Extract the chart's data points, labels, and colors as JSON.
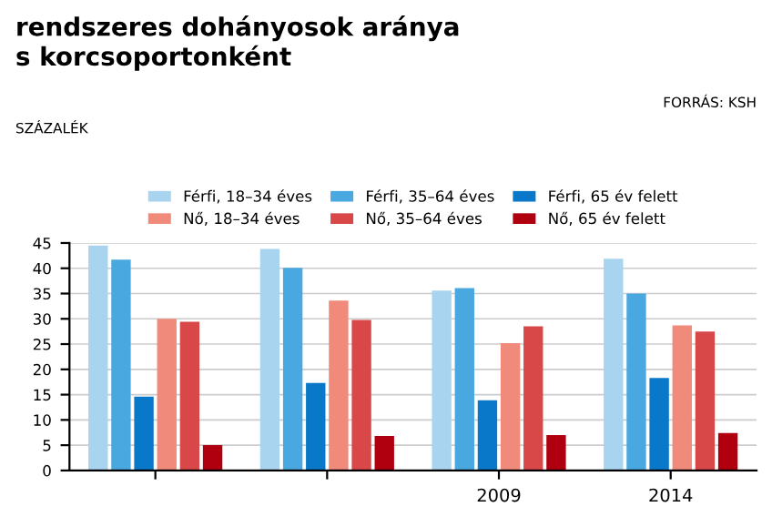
{
  "chart_data": {
    "type": "bar",
    "title": "rendszeres dohányosok aránya\ns korcsoportonként",
    "annotations": [
      "FORRÁS: KSH",
      "SZÁZALÉK"
    ],
    "categories": [
      null,
      null,
      "2009",
      "2014"
    ],
    "series": [
      {
        "name": "Férfi, 18–34 éves",
        "color": "#a8d4f0",
        "values": [
          44.5,
          43.8,
          35.6,
          41.9
        ]
      },
      {
        "name": "Férfi, 35–64 éves",
        "color": "#4aa8e0",
        "values": [
          41.7,
          40.1,
          36.1,
          35
        ]
      },
      {
        "name": "Férfi, 65 év felett",
        "color": "#0a78c8",
        "values": [
          14.6,
          17.3,
          13.9,
          18.3
        ]
      },
      {
        "name": "Nő, 18–34 éves",
        "color": "#f08a7a",
        "values": [
          30,
          33.6,
          25.2,
          28.7
        ]
      },
      {
        "name": "Nő, 35–64 éves",
        "color": "#d94848",
        "values": [
          29.4,
          29.8,
          28.5,
          27.5
        ]
      },
      {
        "name": "Nő, 65 év felett",
        "color": "#b00010",
        "values": [
          5,
          6.8,
          7,
          7.4
        ]
      }
    ],
    "ylim": [
      0,
      45
    ],
    "yticks": [
      0,
      5,
      10,
      15,
      20,
      25,
      30,
      35,
      40,
      45
    ],
    "grid": "y",
    "legend": "top"
  }
}
